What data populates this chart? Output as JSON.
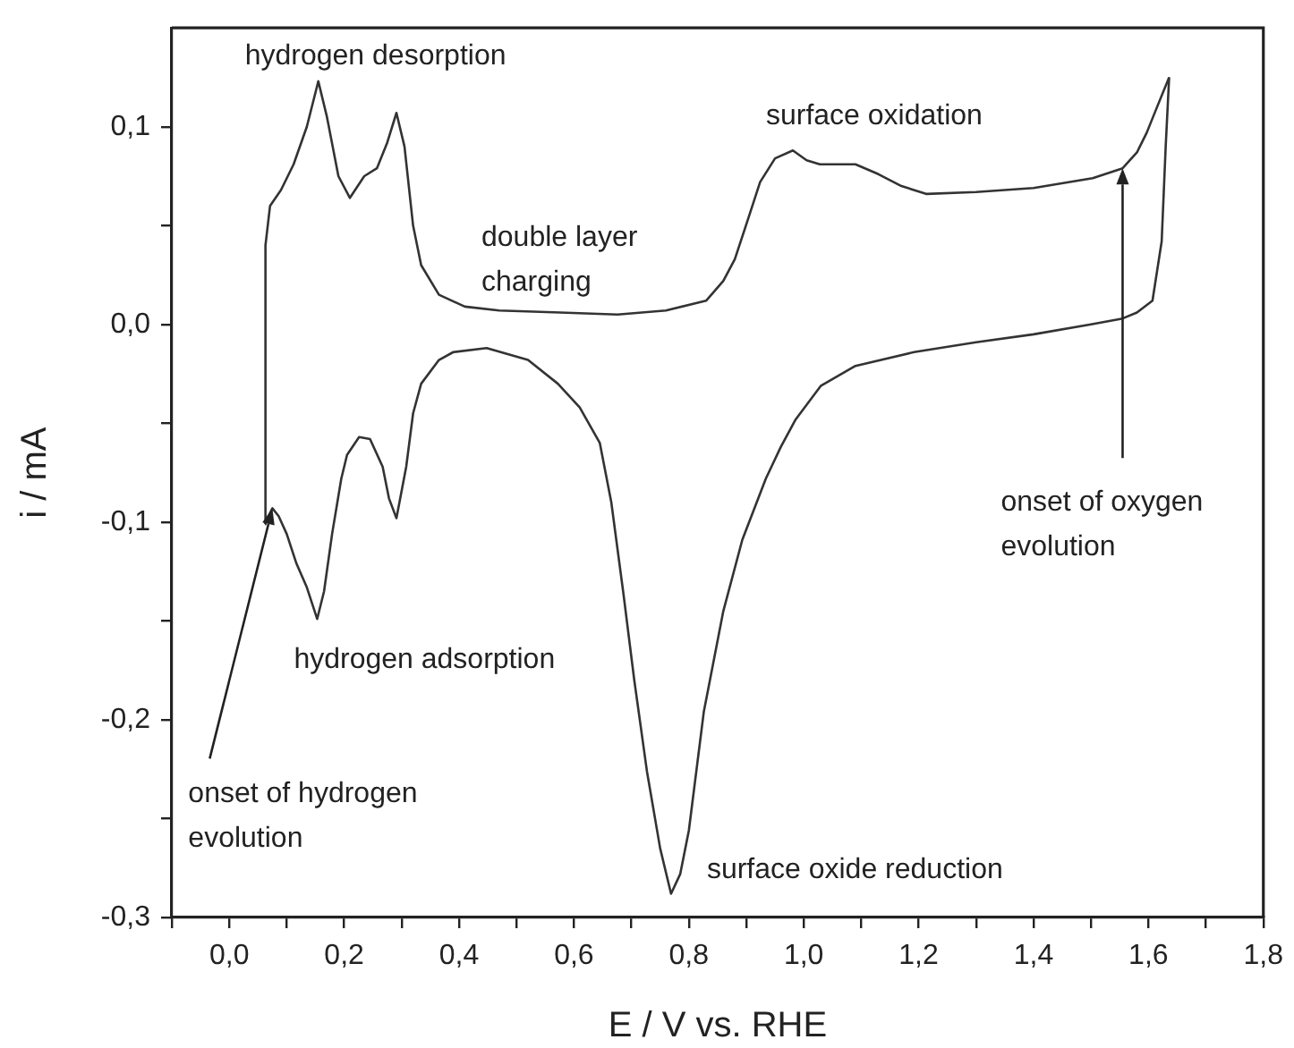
{
  "chart_data": {
    "type": "line",
    "xlabel": "E / V vs. RHE",
    "ylabel": "i / mA",
    "marker": "none",
    "line_style": "solid",
    "grid": false,
    "legend": false,
    "xlim": [
      -0.1,
      1.8
    ],
    "ylim": [
      -0.3,
      0.15
    ],
    "xticks": [
      {
        "value": -0.1,
        "label": null
      },
      {
        "value": 0,
        "label": "0,0"
      },
      {
        "value": 0.1,
        "label": null
      },
      {
        "value": 0.2,
        "label": "0,2"
      },
      {
        "value": 0.3,
        "label": null
      },
      {
        "value": 0.4,
        "label": "0,4"
      },
      {
        "value": 0.5,
        "label": null
      },
      {
        "value": 0.6,
        "label": "0,6"
      },
      {
        "value": 0.7,
        "label": null
      },
      {
        "value": 0.8,
        "label": "0,8"
      },
      {
        "value": 0.9,
        "label": null
      },
      {
        "value": 1.0,
        "label": "1,0"
      },
      {
        "value": 1.1,
        "label": null
      },
      {
        "value": 1.2,
        "label": "1,2"
      },
      {
        "value": 1.3,
        "label": null
      },
      {
        "value": 1.4,
        "label": "1,4"
      },
      {
        "value": 1.5,
        "label": null
      },
      {
        "value": 1.6,
        "label": "1,6"
      },
      {
        "value": 1.7,
        "label": null
      },
      {
        "value": 1.8,
        "label": "1,8"
      }
    ],
    "yticks": [
      {
        "value": -0.3,
        "label": "-0,3"
      },
      {
        "value": -0.25,
        "label": null
      },
      {
        "value": -0.2,
        "label": "-0,2"
      },
      {
        "value": -0.15,
        "label": null
      },
      {
        "value": -0.1,
        "label": "-0,1"
      },
      {
        "value": -0.05,
        "label": null
      },
      {
        "value": 0,
        "label": "0,0"
      },
      {
        "value": 0.05,
        "label": null
      },
      {
        "value": 0.1,
        "label": "0,1"
      }
    ],
    "series": [
      {
        "color": "#333333",
        "x": [
          0.062,
          0.063,
          0.071,
          0.09,
          0.112,
          0.135,
          0.155,
          0.17,
          0.19,
          0.21,
          0.235,
          0.257,
          0.275,
          0.291,
          0.305,
          0.32,
          0.334,
          0.365,
          0.41,
          0.47,
          0.576,
          0.676,
          0.76,
          0.83,
          0.86,
          0.88,
          0.905,
          0.924,
          0.95,
          0.981,
          1.005,
          1.028,
          1.09,
          1.13,
          1.17,
          1.214,
          1.3,
          1.4,
          1.503,
          1.555,
          1.58,
          1.597,
          1.615,
          1.636
        ],
        "values": [
          -0.101,
          0.04,
          0.06,
          0.068,
          0.081,
          0.1,
          0.123,
          0.105,
          0.075,
          0.064,
          0.075,
          0.079,
          0.092,
          0.107,
          0.09,
          0.05,
          0.03,
          0.015,
          0.009,
          0.007,
          0.006,
          0.005,
          0.007,
          0.012,
          0.022,
          0.033,
          0.055,
          0.072,
          0.084,
          0.088,
          0.083,
          0.081,
          0.081,
          0.076,
          0.07,
          0.066,
          0.067,
          0.069,
          0.074,
          0.079,
          0.087,
          0.097,
          0.11,
          0.125
        ]
      },
      {
        "color": "#333333",
        "x": [
          1.636,
          1.63,
          1.623,
          1.607,
          1.58,
          1.555,
          1.5,
          1.4,
          1.3,
          1.192,
          1.09,
          1.03,
          0.986,
          0.96,
          0.934,
          0.893,
          0.86,
          0.826,
          0.8,
          0.785,
          0.769,
          0.75,
          0.727,
          0.705,
          0.686,
          0.665,
          0.645,
          0.61,
          0.572,
          0.52,
          0.448,
          0.39,
          0.365,
          0.334,
          0.32,
          0.308,
          0.291,
          0.278,
          0.267,
          0.245,
          0.226,
          0.205,
          0.195,
          0.179,
          0.165,
          0.153,
          0.135,
          0.117,
          0.1,
          0.086,
          0.075,
          0.062
        ],
        "values": [
          0.125,
          0.09,
          0.042,
          0.012,
          0.006,
          0.003,
          0.0,
          -0.005,
          -0.009,
          -0.014,
          -0.021,
          -0.031,
          -0.048,
          -0.062,
          -0.078,
          -0.109,
          -0.145,
          -0.196,
          -0.256,
          -0.278,
          -0.288,
          -0.265,
          -0.226,
          -0.18,
          -0.136,
          -0.09,
          -0.06,
          -0.042,
          -0.03,
          -0.018,
          -0.012,
          -0.014,
          -0.018,
          -0.03,
          -0.045,
          -0.072,
          -0.098,
          -0.088,
          -0.072,
          -0.058,
          -0.057,
          -0.066,
          -0.078,
          -0.106,
          -0.135,
          -0.149,
          -0.133,
          -0.121,
          -0.106,
          -0.097,
          -0.093,
          -0.101
        ]
      }
    ],
    "annotations": [
      {
        "text": "hydrogen desorption",
        "x": 0.155,
        "y": 0.123
      },
      "double layer\ncharging",
      {
        "text": "surface oxidation",
        "x": 0.981,
        "y": 0.088
      },
      {
        "text": "hydrogen adsorption",
        "x": 0.153,
        "y": -0.149
      },
      {
        "text": "onset of hydrogen\nevolution",
        "x": 0.075,
        "y": -0.093
      },
      {
        "text": "surface oxide reduction",
        "x": 0.769,
        "y": -0.288
      },
      {
        "text": "onset of oxygen\nevolution",
        "x": 1.555,
        "y": 0.079
      }
    ]
  }
}
